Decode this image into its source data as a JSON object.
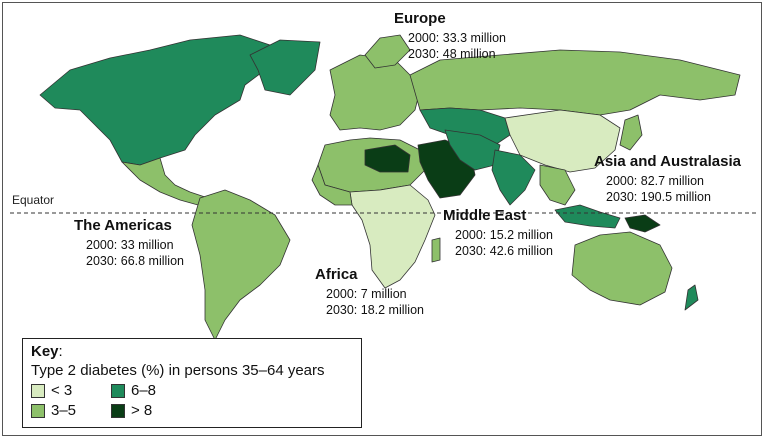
{
  "colors": {
    "lt3": "#d8ebc0",
    "r3_5": "#8dc06a",
    "r6_8": "#1f8a5b",
    "gt8": "#0a3d16",
    "border": "#333333"
  },
  "equator_label": "Equator",
  "regions": {
    "europe": {
      "title": "Europe",
      "line1": "2000: 33.3 million",
      "line2": "2030: 48 million"
    },
    "asia": {
      "title": "Asia and Australasia",
      "line1": "2000: 82.7 million",
      "line2": "2030: 190.5 million"
    },
    "americas": {
      "title": "The Americas",
      "line1": "2000: 33 million",
      "line2": "2030: 66.8 million"
    },
    "middle_east": {
      "title": "Middle East",
      "line1": "2000: 15.2 million",
      "line2": "2030: 42.6 million"
    },
    "africa": {
      "title": "Africa",
      "line1": "2000: 7 million",
      "line2": "2030: 18.2 million"
    }
  },
  "key": {
    "title": "Key",
    "title_suffix": ":",
    "subtitle": "Type 2 diabetes (%) in persons 35–64 years",
    "items": [
      {
        "label": "< 3",
        "color": "#d8ebc0"
      },
      {
        "label": "6–8",
        "color": "#1f8a5b"
      },
      {
        "label": "3–5",
        "color": "#8dc06a"
      },
      {
        "label": "> 8",
        "color": "#0a3d16"
      }
    ]
  }
}
